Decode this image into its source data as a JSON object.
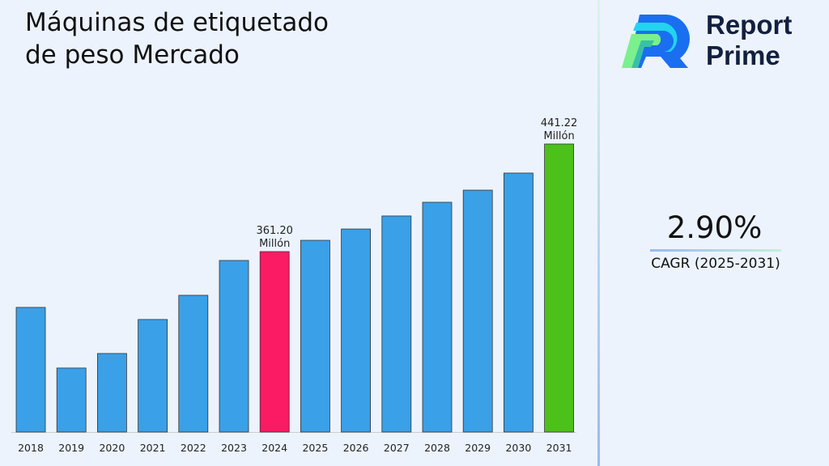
{
  "chart_data": {
    "type": "bar",
    "title": "Máquinas de etiquetado de peso Mercado",
    "categories": [
      "2018",
      "2019",
      "2020",
      "2021",
      "2022",
      "2023",
      "2024",
      "2025",
      "2026",
      "2027",
      "2028",
      "2029",
      "2030",
      "2031"
    ],
    "values": [
      319.7,
      274.6,
      285.4,
      310.7,
      328.7,
      354.6,
      361.2,
      369.6,
      378.0,
      387.7,
      397.9,
      406.9,
      419.6,
      441.22
    ],
    "ylim": [
      227,
      460
    ],
    "grid": false,
    "colors": {
      "default": "#3aa0e8",
      "highlight_2024": "#fb1a64",
      "highlight_2031": "#4cc11a"
    },
    "annotations": [
      {
        "category": "2024",
        "value": "361.20",
        "unit": "Millón"
      },
      {
        "category": "2031",
        "value": "441.22",
        "unit": "Millón"
      }
    ]
  },
  "brand": {
    "line1": "Report",
    "line2": "Prime"
  },
  "cagr": {
    "value": "2.90%",
    "label": "CAGR (2025-2031)"
  }
}
